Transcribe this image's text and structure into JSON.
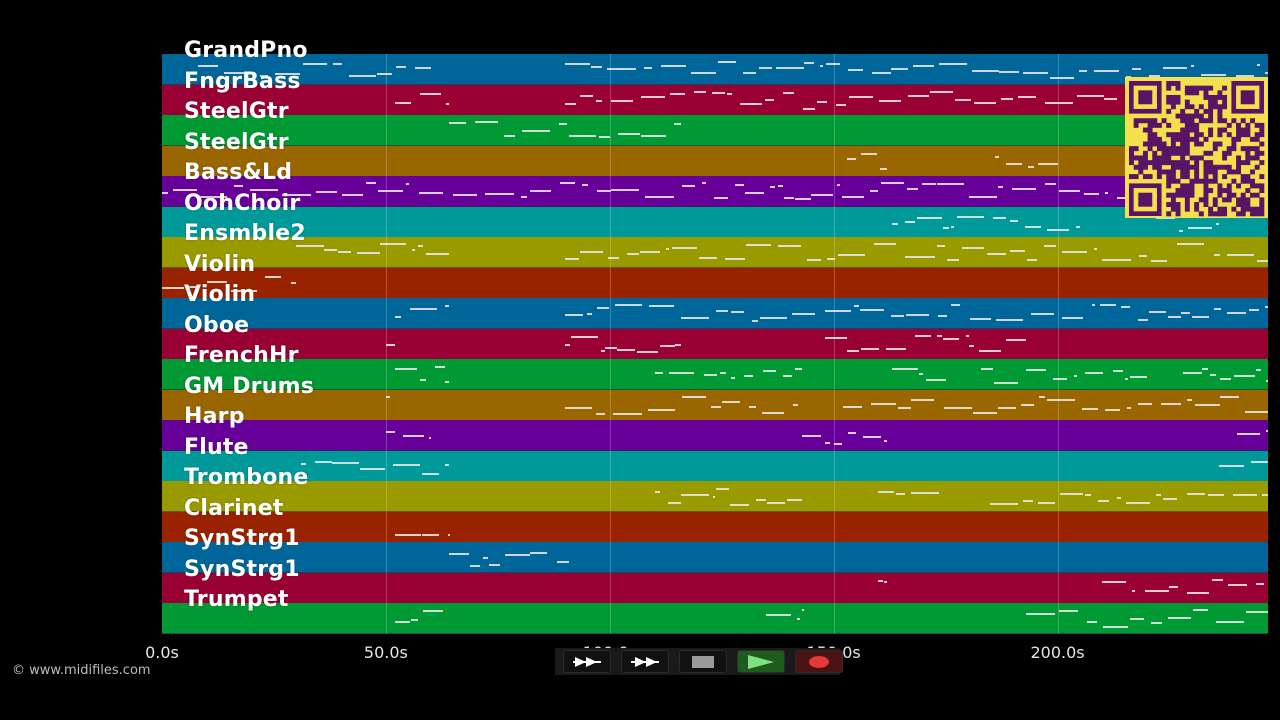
{
  "tracks": [
    {
      "name": "GrandPno",
      "color": "#006699"
    },
    {
      "name": "FngrBass",
      "color": "#990033"
    },
    {
      "name": "SteelGtr",
      "color": "#009933"
    },
    {
      "name": "SteelGtr",
      "color": "#996600"
    },
    {
      "name": "Bass&Ld",
      "color": "#660099"
    },
    {
      "name": "OohChoir",
      "color": "#009999"
    },
    {
      "name": "Ensmble2",
      "color": "#999900"
    },
    {
      "name": "Violin",
      "color": "#992200"
    },
    {
      "name": "Violin",
      "color": "#006699"
    },
    {
      "name": "Oboe",
      "color": "#990033"
    },
    {
      "name": "FrenchHr",
      "color": "#009933"
    },
    {
      "name": "GM Drums",
      "color": "#996600"
    },
    {
      "name": "Harp",
      "color": "#660099"
    },
    {
      "name": "Flute",
      "color": "#009999"
    },
    {
      "name": "Trombone",
      "color": "#999900"
    },
    {
      "name": "Clarinet",
      "color": "#992200"
    },
    {
      "name": "SynStrg1",
      "color": "#006699"
    },
    {
      "name": "SynStrg1",
      "color": "#990033"
    },
    {
      "name": "Trumpet",
      "color": "#009933"
    }
  ],
  "timeline": {
    "ticks": [
      "0.0s",
      "50.0s",
      "100.0s",
      "150.0s",
      "200.0s"
    ],
    "tick_values": [
      0,
      50,
      100,
      150,
      200
    ],
    "max_seconds": 247
  },
  "transport": {
    "rewind_icon": "rewind-icon",
    "forward_icon": "fast-forward-icon",
    "stop_icon": "stop-icon",
    "play_icon": "play-icon",
    "record_icon": "record-icon",
    "play_color": "#2e8b2e",
    "record_color": "#8b1a1a"
  },
  "qr_colors": {
    "dark": "#5a1466",
    "light": "#f4e04d"
  },
  "copyright": "© www.midifiles.com"
}
